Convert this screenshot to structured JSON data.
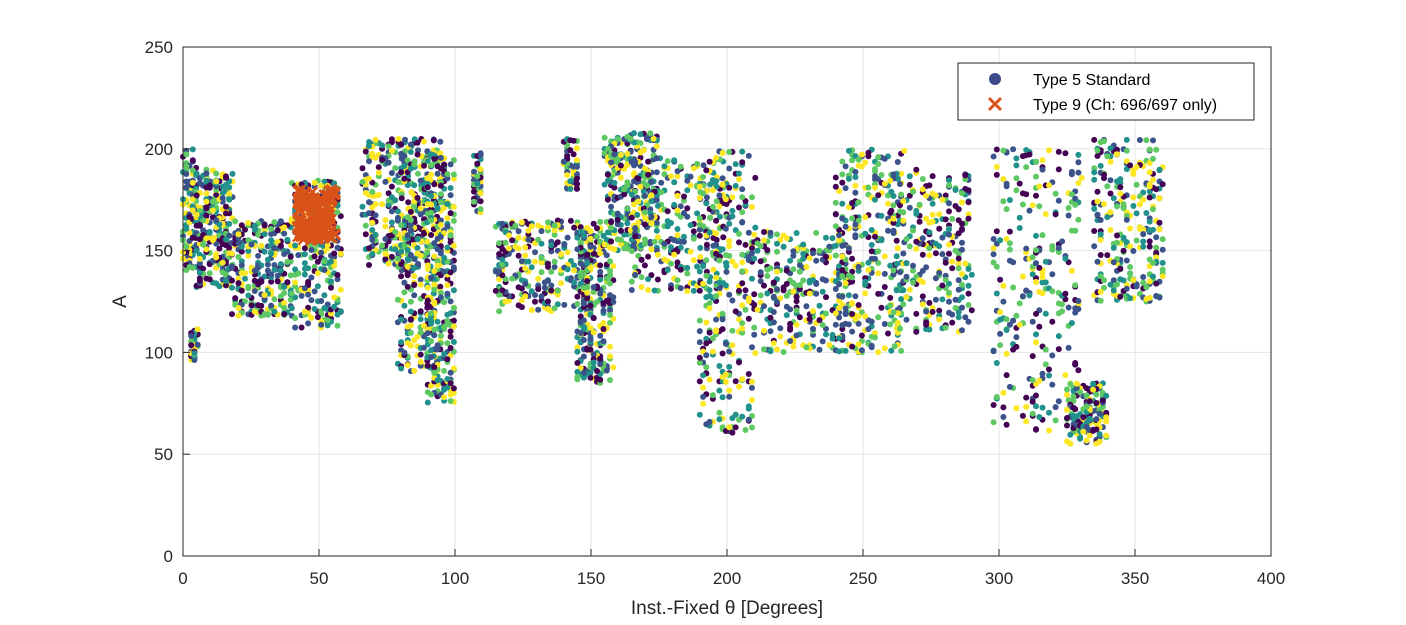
{
  "chart_data": {
    "type": "scatter",
    "title": "",
    "xlabel": "Inst.-Fixed θ [Degrees]",
    "ylabel": "A",
    "xlim": [
      0,
      400
    ],
    "ylim": [
      0,
      250
    ],
    "xticks": [
      0,
      50,
      100,
      150,
      200,
      250,
      300,
      350,
      400
    ],
    "yticks": [
      0,
      50,
      100,
      150,
      200,
      250
    ],
    "grid": true,
    "legend_position": "top-right",
    "colormap": [
      "#440154",
      "#3b528b",
      "#21918c",
      "#5ec962",
      "#fde725"
    ],
    "series": [
      {
        "name": "Type 5 Standard",
        "marker": "circle",
        "legend_color": "#3e4a89",
        "colored_by_colormap": true,
        "clusters": [
          {
            "x": [
              0,
              5
            ],
            "y": [
              140,
              200
            ]
          },
          {
            "x": [
              3,
              5
            ],
            "y": [
              96,
              112
            ]
          },
          {
            "x": [
              5,
              18
            ],
            "y": [
              132,
              190
            ]
          },
          {
            "x": [
              18,
              40
            ],
            "y": [
              118,
              165
            ]
          },
          {
            "x": [
              40,
              58
            ],
            "y": [
              112,
              185
            ]
          },
          {
            "x": [
              66,
              90
            ],
            "y": [
              140,
              205
            ]
          },
          {
            "x": [
              79,
              95
            ],
            "y": [
              90,
              205
            ]
          },
          {
            "x": [
              90,
              100
            ],
            "y": [
              75,
              200
            ]
          },
          {
            "x": [
              107,
              110
            ],
            "y": [
              168,
              200
            ]
          },
          {
            "x": [
              115,
              150
            ],
            "y": [
              120,
              165
            ]
          },
          {
            "x": [
              140,
              145
            ],
            "y": [
              180,
              205
            ]
          },
          {
            "x": [
              145,
              158
            ],
            "y": [
              85,
              165
            ]
          },
          {
            "x": [
              155,
              175
            ],
            "y": [
              150,
              208
            ]
          },
          {
            "x": [
              165,
              200
            ],
            "y": [
              130,
              195
            ]
          },
          {
            "x": [
              190,
              210
            ],
            "y": [
              60,
              200
            ]
          },
          {
            "x": [
              210,
              245
            ],
            "y": [
              100,
              160
            ]
          },
          {
            "x": [
              240,
              265
            ],
            "y": [
              100,
              200
            ]
          },
          {
            "x": [
              260,
              290
            ],
            "y": [
              110,
              190
            ]
          },
          {
            "x": [
              298,
              330
            ],
            "y": [
              60,
              200
            ]
          },
          {
            "x": [
              325,
              340
            ],
            "y": [
              55,
              85
            ]
          },
          {
            "x": [
              335,
              360
            ],
            "y": [
              125,
              205
            ]
          }
        ]
      },
      {
        "name": "Type 9 (Ch: 696/697 only)",
        "marker": "x",
        "color": "#d95319",
        "clusters": [
          {
            "x": [
              42,
              56
            ],
            "y": [
              155,
              180
            ]
          }
        ]
      }
    ]
  }
}
